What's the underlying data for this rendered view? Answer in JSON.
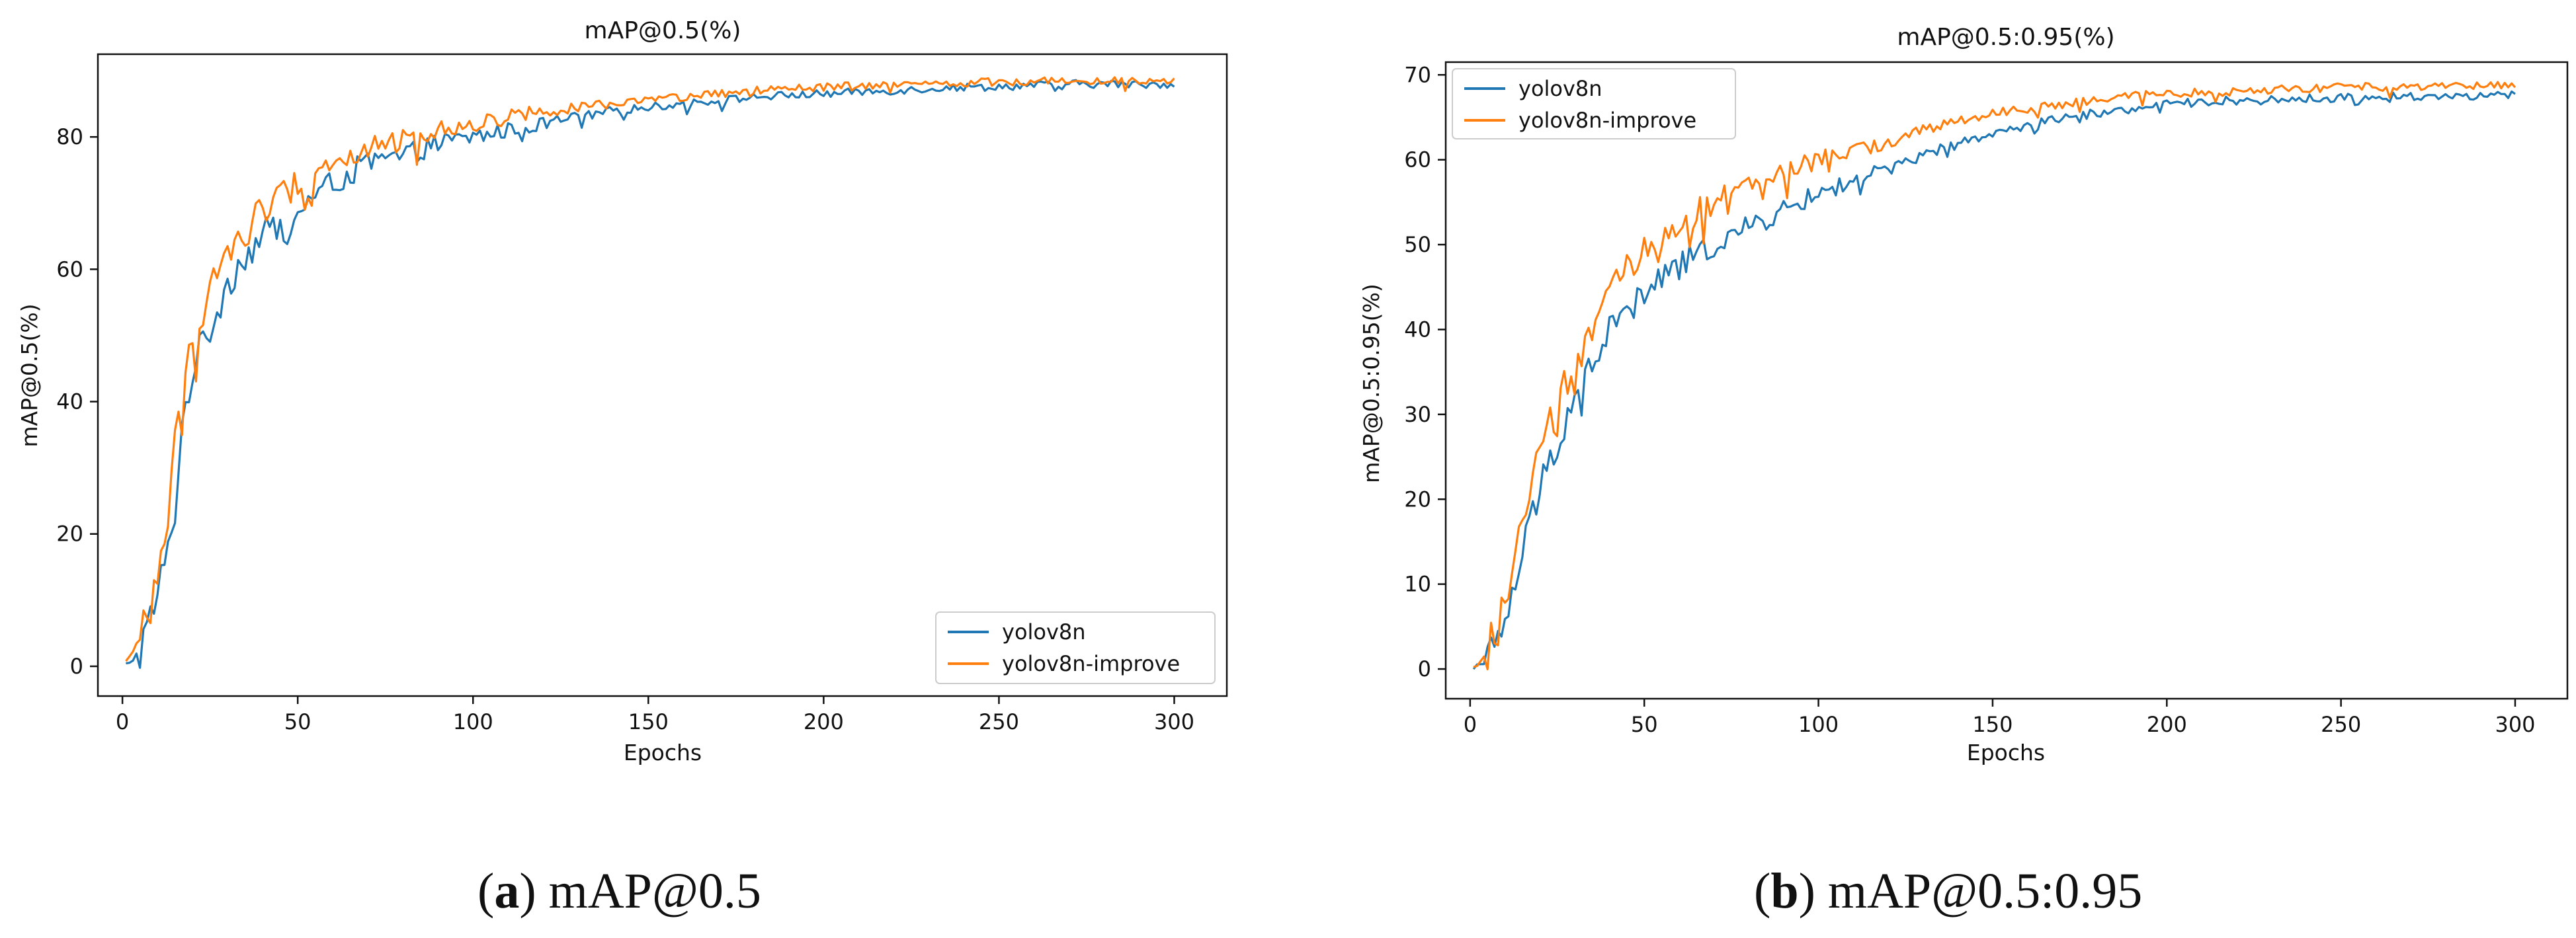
{
  "chart_data": [
    {
      "type": "line",
      "title": "mAP@0.5(%)",
      "xlabel": "Epochs",
      "ylabel": "mAP@0.5(%)",
      "xlim": [
        -7,
        315
      ],
      "ylim": [
        -4.5,
        92.5
      ],
      "xticks": [
        0,
        50,
        100,
        150,
        200,
        250,
        300
      ],
      "yticks": [
        0,
        20,
        40,
        60,
        80
      ],
      "legend_position": "lower-right",
      "anchors": {
        "yolov8n": [
          [
            1,
            0.3
          ],
          [
            3,
            1
          ],
          [
            5,
            2.5
          ],
          [
            8,
            7
          ],
          [
            10,
            11
          ],
          [
            13,
            17
          ],
          [
            15,
            24
          ],
          [
            17,
            36
          ],
          [
            20,
            45
          ],
          [
            25,
            51
          ],
          [
            30,
            58
          ],
          [
            35,
            62
          ],
          [
            40,
            65
          ],
          [
            45,
            67
          ],
          [
            50,
            69
          ],
          [
            55,
            71
          ],
          [
            60,
            73
          ],
          [
            70,
            76
          ],
          [
            80,
            77
          ],
          [
            90,
            79
          ],
          [
            100,
            80
          ],
          [
            110,
            81
          ],
          [
            120,
            82
          ],
          [
            130,
            83
          ],
          [
            140,
            84
          ],
          [
            150,
            84.5
          ],
          [
            160,
            85
          ],
          [
            170,
            85.5
          ],
          [
            180,
            86
          ],
          [
            190,
            86.3
          ],
          [
            200,
            86.5
          ],
          [
            210,
            86.8
          ],
          [
            220,
            87
          ],
          [
            230,
            87.3
          ],
          [
            240,
            87.5
          ],
          [
            250,
            87.6
          ],
          [
            260,
            87.8
          ],
          [
            270,
            88
          ],
          [
            280,
            88
          ],
          [
            290,
            87.9
          ],
          [
            300,
            88
          ]
        ],
        "yolov8n-improve": [
          [
            1,
            0.5
          ],
          [
            3,
            2.5
          ],
          [
            5,
            5
          ],
          [
            8,
            9
          ],
          [
            10,
            14
          ],
          [
            13,
            24
          ],
          [
            15,
            33
          ],
          [
            17,
            42
          ],
          [
            20,
            49
          ],
          [
            25,
            57
          ],
          [
            30,
            63
          ],
          [
            35,
            66
          ],
          [
            40,
            69
          ],
          [
            45,
            71
          ],
          [
            50,
            73
          ],
          [
            55,
            75
          ],
          [
            60,
            76
          ],
          [
            70,
            78
          ],
          [
            80,
            79.5
          ],
          [
            90,
            81
          ],
          [
            100,
            82
          ],
          [
            110,
            83
          ],
          [
            120,
            84
          ],
          [
            130,
            84.5
          ],
          [
            140,
            85
          ],
          [
            150,
            85.5
          ],
          [
            160,
            86
          ],
          [
            170,
            86.5
          ],
          [
            180,
            87
          ],
          [
            190,
            87.2
          ],
          [
            200,
            87.5
          ],
          [
            210,
            87.7
          ],
          [
            220,
            87.8
          ],
          [
            230,
            88
          ],
          [
            240,
            88.2
          ],
          [
            250,
            88.3
          ],
          [
            260,
            88.4
          ],
          [
            270,
            88.5
          ],
          [
            280,
            88.6
          ],
          [
            290,
            88.6
          ],
          [
            300,
            88.7
          ]
        ]
      },
      "noise": {
        "amplitude_early": 3.2,
        "amplitude_late": 0.6,
        "decay_epoch": 140
      },
      "series": [
        {
          "name": "yolov8n",
          "color": "#1f77b4"
        },
        {
          "name": "yolov8n-improve",
          "color": "#ff7f0e"
        }
      ]
    },
    {
      "type": "line",
      "title": "mAP@0.5:0.95(%)",
      "xlabel": "Epochs",
      "ylabel": "mAP@0.5:0.95(%)",
      "xlim": [
        -7,
        315
      ],
      "ylim": [
        -3.5,
        71.5
      ],
      "xticks": [
        0,
        50,
        100,
        150,
        200,
        250,
        300
      ],
      "yticks": [
        0,
        10,
        20,
        30,
        40,
        50,
        60,
        70
      ],
      "legend_position": "upper-left",
      "anchors": {
        "yolov8n": [
          [
            1,
            0.2
          ],
          [
            3,
            0.5
          ],
          [
            5,
            1
          ],
          [
            8,
            3
          ],
          [
            10,
            6
          ],
          [
            13,
            10
          ],
          [
            15,
            13
          ],
          [
            17,
            17
          ],
          [
            20,
            21
          ],
          [
            25,
            27
          ],
          [
            30,
            32
          ],
          [
            35,
            36
          ],
          [
            40,
            40
          ],
          [
            45,
            42
          ],
          [
            50,
            44
          ],
          [
            55,
            46
          ],
          [
            60,
            47.5
          ],
          [
            70,
            50
          ],
          [
            80,
            52
          ],
          [
            90,
            54
          ],
          [
            100,
            56
          ],
          [
            110,
            57.5
          ],
          [
            120,
            59
          ],
          [
            130,
            60.5
          ],
          [
            140,
            62
          ],
          [
            150,
            63
          ],
          [
            160,
            64
          ],
          [
            170,
            65
          ],
          [
            180,
            65.5
          ],
          [
            190,
            66
          ],
          [
            200,
            66.5
          ],
          [
            210,
            66.8
          ],
          [
            220,
            67
          ],
          [
            230,
            67
          ],
          [
            240,
            67.2
          ],
          [
            250,
            67.3
          ],
          [
            260,
            67.4
          ],
          [
            270,
            67.5
          ],
          [
            280,
            67.5
          ],
          [
            290,
            67.5
          ],
          [
            300,
            67.6
          ]
        ],
        "yolov8n-improve": [
          [
            1,
            0.3
          ],
          [
            3,
            1
          ],
          [
            5,
            2
          ],
          [
            8,
            5
          ],
          [
            10,
            9
          ],
          [
            13,
            14
          ],
          [
            15,
            18
          ],
          [
            17,
            21
          ],
          [
            20,
            25
          ],
          [
            25,
            31
          ],
          [
            30,
            36
          ],
          [
            35,
            40
          ],
          [
            40,
            44
          ],
          [
            45,
            47
          ],
          [
            50,
            49
          ],
          [
            55,
            51
          ],
          [
            60,
            52.5
          ],
          [
            70,
            55
          ],
          [
            80,
            57
          ],
          [
            90,
            58.5
          ],
          [
            100,
            60
          ],
          [
            110,
            61
          ],
          [
            120,
            62
          ],
          [
            130,
            63.5
          ],
          [
            140,
            64.5
          ],
          [
            150,
            65.5
          ],
          [
            160,
            66
          ],
          [
            170,
            66.5
          ],
          [
            180,
            67
          ],
          [
            190,
            67.5
          ],
          [
            200,
            67.8
          ],
          [
            210,
            68
          ],
          [
            220,
            68
          ],
          [
            230,
            68.2
          ],
          [
            240,
            68.4
          ],
          [
            250,
            68.5
          ],
          [
            260,
            68.6
          ],
          [
            270,
            68.7
          ],
          [
            280,
            68.8
          ],
          [
            290,
            68.8
          ],
          [
            300,
            68.9
          ]
        ]
      },
      "noise": {
        "amplitude_early": 2.6,
        "amplitude_late": 0.5,
        "decay_epoch": 140
      },
      "series": [
        {
          "name": "yolov8n",
          "color": "#1f77b4"
        },
        {
          "name": "yolov8n-improve",
          "color": "#ff7f0e"
        }
      ]
    }
  ],
  "captions": {
    "a": {
      "label": "a",
      "text": "mAP@0.5"
    },
    "b": {
      "label": "b",
      "text": "mAP@0.5:0.95"
    }
  }
}
